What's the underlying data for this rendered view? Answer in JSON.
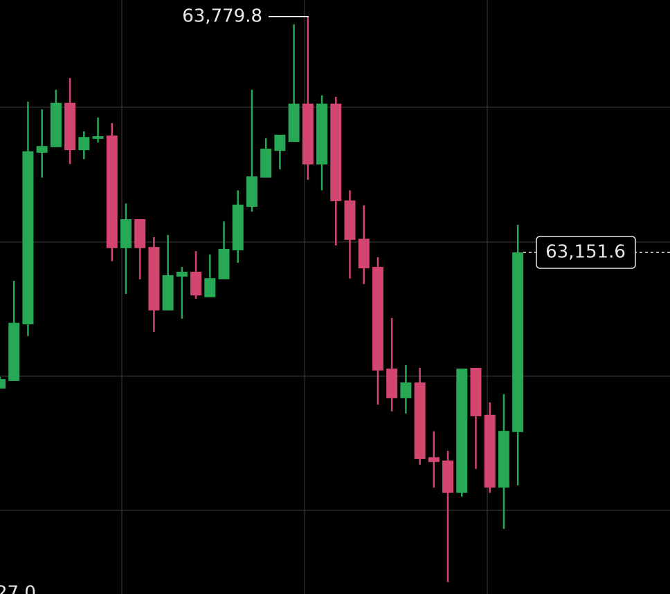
{
  "chart_data": {
    "type": "candlestick",
    "up_color": "#27a854",
    "down_color": "#d3466f",
    "ylim": [
      62241.5,
      63824
    ],
    "open": [
      62789,
      62809,
      62960,
      63417,
      63432,
      63550,
      63424,
      63454,
      63463,
      63163,
      63240,
      63166,
      62997,
      63087,
      63100,
      63032,
      63080,
      63157,
      63273,
      63351,
      63422,
      63446,
      63548,
      63386,
      63548,
      63290,
      63188,
      63113,
      62842,
      62763,
      62805,
      62606,
      62597,
      62511,
      62844,
      62719,
      62525,
      62673
    ],
    "high": [
      62820,
      63076,
      63553,
      63533,
      63585,
      63616,
      63474,
      63511,
      63496,
      63282,
      63240,
      63192,
      63198,
      63113,
      63155,
      63146,
      63234,
      63317,
      63585,
      63456,
      63465,
      63759,
      63779.8,
      63570,
      63566,
      63317,
      63277,
      63139,
      62977,
      62851,
      62844,
      62675,
      62623,
      62835,
      62835,
      62752,
      62774,
      63225
    ],
    "low": [
      62789,
      62809,
      62929,
      63351,
      63432,
      63387,
      63400,
      63444,
      63128,
      63041,
      63080,
      62940,
      62997,
      62975,
      63028,
      63032,
      63080,
      63124,
      63260,
      63351,
      63373,
      63446,
      63345,
      63317,
      63170,
      63082,
      63067,
      62746,
      62728,
      62722,
      62586,
      62525,
      62273,
      62501,
      62575,
      62511,
      62415,
      62531
    ],
    "close": [
      62814,
      62964,
      63421,
      63435,
      63550,
      63424,
      63459,
      63461,
      63163,
      63240,
      63163,
      62997,
      63091,
      63100,
      63037,
      63083,
      63161,
      63279,
      63354,
      63428,
      63465,
      63548,
      63386,
      63548,
      63288,
      63185,
      63109,
      62837,
      62763,
      62805,
      62601,
      62593,
      62511,
      62842,
      62715,
      62525,
      62676,
      63151.6
    ],
    "high_marker": {
      "value": 63779.8,
      "label": "63,779.8"
    },
    "last_price": {
      "value": 63151.6,
      "label": "63,151.6"
    },
    "corner_label": "27.0"
  }
}
